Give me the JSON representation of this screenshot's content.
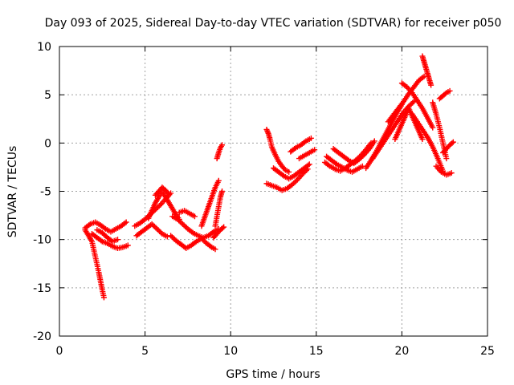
{
  "chart_data": {
    "type": "scatter",
    "title": "Day 093 of 2025, Sidereal Day-to-day VTEC variation (SDTVAR) for receiver p050",
    "xlabel": "GPS time / hours",
    "ylabel": "SDTVAR / TECUs",
    "xlim": [
      0,
      25
    ],
    "ylim": [
      -20,
      10
    ],
    "xticks": [
      0,
      5,
      10,
      15,
      20,
      25
    ],
    "yticks": [
      -20,
      -15,
      -10,
      -5,
      0,
      5,
      10
    ],
    "grid": true,
    "marker": "plus",
    "color": "#ff0000",
    "series": [
      {
        "x": [
          1.5,
          1.7,
          1.9,
          2.0,
          2.1,
          2.2,
          2.3,
          2.4,
          2.5,
          2.6
        ],
        "y": [
          -9.0,
          -9.6,
          -10.2,
          -11.0,
          -11.8,
          -12.6,
          -13.4,
          -14.3,
          -15.2,
          -16.0
        ]
      },
      {
        "x": [
          1.5,
          1.8,
          2.1,
          2.4,
          2.7,
          3.0,
          3.3,
          3.6,
          3.9
        ],
        "y": [
          -8.8,
          -8.4,
          -8.2,
          -8.5,
          -8.9,
          -9.2,
          -8.9,
          -8.6,
          -8.2
        ]
      },
      {
        "x": [
          1.9,
          2.2,
          2.5,
          2.8,
          3.1,
          3.4,
          3.7,
          4.0
        ],
        "y": [
          -9.4,
          -9.8,
          -10.2,
          -10.4,
          -10.7,
          -10.9,
          -10.8,
          -10.6
        ]
      },
      {
        "x": [
          2.2,
          2.5,
          2.8,
          3.1,
          3.4
        ],
        "y": [
          -9.0,
          -9.3,
          -9.8,
          -10.2,
          -10.0
        ]
      },
      {
        "x": [
          4.4,
          4.7,
          5.0,
          5.3,
          5.6,
          5.9,
          6.2,
          6.5
        ],
        "y": [
          -8.6,
          -8.3,
          -7.9,
          -7.4,
          -6.9,
          -6.4,
          -5.8,
          -5.2
        ]
      },
      {
        "x": [
          4.5,
          4.8,
          5.1,
          5.4,
          5.7,
          6.0,
          6.3
        ],
        "y": [
          -9.6,
          -9.2,
          -8.8,
          -8.4,
          -8.9,
          -9.4,
          -9.7
        ]
      },
      {
        "x": [
          5.2,
          5.4,
          5.6,
          5.8,
          6.0,
          6.2,
          6.4,
          6.6,
          6.8,
          7.0
        ],
        "y": [
          -7.8,
          -7.0,
          -6.2,
          -5.6,
          -5.1,
          -5.6,
          -6.2,
          -6.8,
          -7.4,
          -7.9
        ]
      },
      {
        "x": [
          5.6,
          5.8,
          6.0,
          6.2,
          6.4
        ],
        "y": [
          -5.4,
          -5.0,
          -4.6,
          -4.9,
          -5.3
        ]
      },
      {
        "x": [
          6.5,
          6.8,
          7.1,
          7.4,
          7.7,
          8.0,
          8.3,
          8.6,
          8.9,
          9.1
        ],
        "y": [
          -9.6,
          -10.1,
          -10.5,
          -10.9,
          -10.6,
          -10.2,
          -9.9,
          -10.4,
          -10.8,
          -11.0
        ]
      },
      {
        "x": [
          6.6,
          6.9,
          7.2,
          7.5,
          7.8,
          8.1,
          8.4,
          8.7,
          9.0,
          9.3
        ],
        "y": [
          -7.6,
          -7.9,
          -8.4,
          -8.9,
          -9.3,
          -9.6,
          -9.8,
          -9.6,
          -9.2,
          -8.9
        ]
      },
      {
        "x": [
          7.0,
          7.3,
          7.6,
          7.9
        ],
        "y": [
          -7.2,
          -7.0,
          -7.3,
          -7.6
        ]
      },
      {
        "x": [
          8.3,
          8.5,
          8.7,
          8.9,
          9.1,
          9.3
        ],
        "y": [
          -8.6,
          -7.6,
          -6.6,
          -5.6,
          -4.6,
          -3.9
        ]
      },
      {
        "x": [
          9.1,
          9.2,
          9.3,
          9.4,
          9.5
        ],
        "y": [
          -8.6,
          -7.6,
          -6.6,
          -5.6,
          -5.0
        ]
      },
      {
        "x": [
          9.2,
          9.3,
          9.4,
          9.5
        ],
        "y": [
          -1.6,
          -1.0,
          -0.5,
          -0.2
        ]
      },
      {
        "x": [
          9.0,
          9.2,
          9.4,
          9.6
        ],
        "y": [
          -9.8,
          -9.4,
          -9.0,
          -8.7
        ]
      },
      {
        "x": [
          12.1,
          12.2,
          12.3,
          12.4,
          12.6,
          12.8,
          13.0,
          13.2,
          13.4
        ],
        "y": [
          1.4,
          1.0,
          0.4,
          -0.4,
          -1.2,
          -1.9,
          -2.4,
          -2.8,
          -3.0
        ]
      },
      {
        "x": [
          12.1,
          12.4,
          12.7,
          13.0,
          13.3,
          13.6,
          13.9,
          14.2,
          14.5
        ],
        "y": [
          -4.2,
          -4.4,
          -4.6,
          -4.9,
          -4.7,
          -4.3,
          -3.8,
          -3.2,
          -2.7
        ]
      },
      {
        "x": [
          12.5,
          12.8,
          13.1,
          13.4,
          13.7,
          14.0,
          14.3,
          14.6
        ],
        "y": [
          -2.6,
          -3.0,
          -3.4,
          -3.7,
          -3.4,
          -3.0,
          -2.6,
          -2.2
        ]
      },
      {
        "x": [
          13.5,
          13.8,
          14.1,
          14.4,
          14.7
        ],
        "y": [
          -0.9,
          -0.5,
          -0.2,
          0.2,
          0.5
        ]
      },
      {
        "x": [
          14.0,
          14.3,
          14.6,
          14.9
        ],
        "y": [
          -1.6,
          -1.3,
          -1.0,
          -0.7
        ]
      },
      {
        "x": [
          15.5,
          15.8,
          16.1,
          16.4,
          16.7,
          17.0,
          17.3,
          17.6,
          17.9,
          18.2
        ],
        "y": [
          -2.0,
          -2.4,
          -2.7,
          -2.9,
          -2.6,
          -2.2,
          -1.8,
          -1.3,
          -0.7,
          0.0
        ]
      },
      {
        "x": [
          15.6,
          15.9,
          16.2,
          16.5,
          16.8,
          17.1,
          17.4,
          17.7
        ],
        "y": [
          -1.4,
          -1.8,
          -2.2,
          -2.5,
          -2.8,
          -3.0,
          -2.7,
          -2.4
        ]
      },
      {
        "x": [
          16.0,
          16.3,
          16.6,
          16.9,
          17.2,
          17.5,
          17.8,
          18.1,
          18.4
        ],
        "y": [
          -0.6,
          -1.0,
          -1.4,
          -1.8,
          -2.1,
          -1.7,
          -1.2,
          -0.6,
          0.2
        ]
      },
      {
        "x": [
          17.9,
          18.2,
          18.5,
          18.8,
          19.1,
          19.4,
          19.7,
          20.0
        ],
        "y": [
          -2.6,
          -1.8,
          -0.9,
          0.1,
          1.1,
          2.1,
          3.1,
          4.0
        ]
      },
      {
        "x": [
          18.3,
          18.6,
          18.9,
          19.2,
          19.5,
          19.8,
          20.1,
          20.4,
          20.7
        ],
        "y": [
          -1.6,
          -0.8,
          0.0,
          0.8,
          1.6,
          2.4,
          3.2,
          3.8,
          4.3
        ]
      },
      {
        "x": [
          19.2,
          19.5,
          19.8,
          20.1,
          20.4,
          20.7,
          21.0,
          21.3
        ],
        "y": [
          2.2,
          2.9,
          3.6,
          4.3,
          5.1,
          5.8,
          6.5,
          6.9
        ]
      },
      {
        "x": [
          19.6,
          19.8,
          20.0,
          20.2,
          20.4,
          20.6,
          20.8,
          21.0,
          21.2
        ],
        "y": [
          0.4,
          1.2,
          2.0,
          2.8,
          3.6,
          2.8,
          2.0,
          1.2,
          0.4
        ]
      },
      {
        "x": [
          20.0,
          20.3,
          20.6,
          20.9,
          21.2,
          21.5,
          21.8
        ],
        "y": [
          6.2,
          5.8,
          5.2,
          4.4,
          3.6,
          2.6,
          1.6
        ]
      },
      {
        "x": [
          20.6,
          20.9,
          21.2,
          21.5,
          21.8,
          22.1,
          22.4
        ],
        "y": [
          3.0,
          2.2,
          1.4,
          0.6,
          -0.4,
          -1.6,
          -2.9
        ]
      },
      {
        "x": [
          21.2,
          21.3,
          21.4,
          21.5,
          21.6,
          21.7
        ],
        "y": [
          9.0,
          8.4,
          7.8,
          7.2,
          6.6,
          6.0
        ]
      },
      {
        "x": [
          21.8,
          22.0,
          22.2,
          22.4,
          22.6
        ],
        "y": [
          4.2,
          3.0,
          1.6,
          0.0,
          -1.6
        ]
      },
      {
        "x": [
          22.0,
          22.3,
          22.6,
          22.9
        ],
        "y": [
          -2.4,
          -3.0,
          -3.3,
          -3.1
        ]
      },
      {
        "x": [
          22.2,
          22.4,
          22.6,
          22.8
        ],
        "y": [
          4.6,
          4.9,
          5.2,
          5.4
        ]
      },
      {
        "x": [
          22.4,
          22.6,
          22.8,
          23.0
        ],
        "y": [
          -1.0,
          -0.6,
          -0.2,
          0.1
        ]
      }
    ]
  }
}
